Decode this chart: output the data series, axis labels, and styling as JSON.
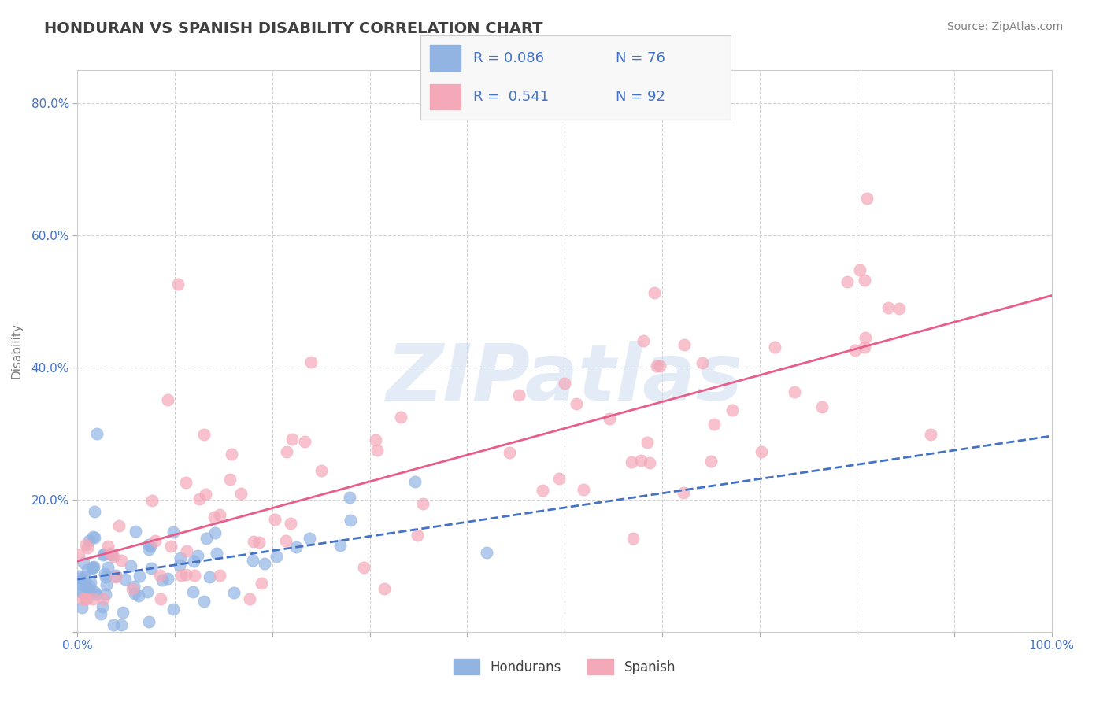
{
  "title": "HONDURAN VS SPANISH DISABILITY CORRELATION CHART",
  "source_text": "Source: ZipAtlas.com",
  "xlabel": "",
  "ylabel": "Disability",
  "xlim": [
    0.0,
    1.0
  ],
  "ylim": [
    0.0,
    0.85
  ],
  "xticks": [
    0.0,
    0.1,
    0.2,
    0.3,
    0.4,
    0.5,
    0.6,
    0.7,
    0.8,
    0.9,
    1.0
  ],
  "xticklabels": [
    "0.0%",
    "",
    "",
    "",
    "",
    "",
    "",
    "",
    "",
    "",
    "100.0%"
  ],
  "yticks": [
    0.0,
    0.2,
    0.4,
    0.6,
    0.8
  ],
  "yticklabels": [
    "",
    "20.0%",
    "40.0%",
    "60.0%",
    "80.0%"
  ],
  "honduran_color": "#92b4e3",
  "spanish_color": "#f4a8b8",
  "honduran_line_color": "#4472c4",
  "spanish_line_color": "#e85d8a",
  "background_color": "#ffffff",
  "grid_color": "#d3d3d3",
  "legend_R1": "R = 0.086",
  "legend_N1": "N = 76",
  "legend_R2": "R =  0.541",
  "legend_N2": "N = 92",
  "watermark": "ZIPatlas",
  "watermark_color": "#c8d8f0",
  "title_color": "#404040",
  "axis_label_color": "#808080",
  "tick_color": "#4472c4",
  "legend_text_color": "#4472c4",
  "honduran_R": 0.086,
  "honduran_N": 76,
  "spanish_R": 0.541,
  "spanish_N": 92,
  "seed": 42
}
